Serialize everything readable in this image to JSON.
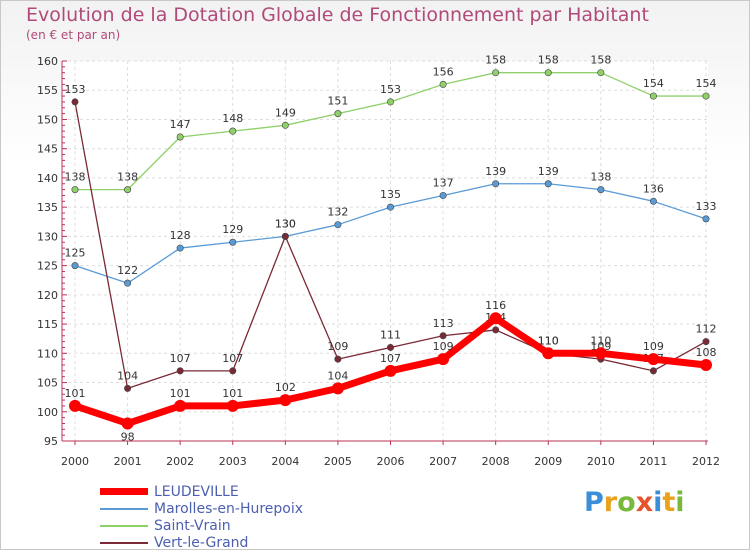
{
  "title": "Evolution de la Dotation Globale de Fonctionnement par Habitant",
  "subtitle": "(en € et par an)",
  "logo": "Proxiti",
  "chart_data": {
    "type": "line",
    "title": "Evolution de la Dotation Globale de Fonctionnement par Habitant",
    "subtitle": "(en € et par an)",
    "x": [
      "2000",
      "2001",
      "2002",
      "2003",
      "2004",
      "2005",
      "2006",
      "2007",
      "2008",
      "2009",
      "2010",
      "2011",
      "2012"
    ],
    "ylim": [
      95,
      160
    ],
    "yticks": [
      95,
      100,
      105,
      110,
      115,
      120,
      125,
      130,
      135,
      140,
      145,
      150,
      155,
      160
    ],
    "legend_position": "bottom-left",
    "series": [
      {
        "name": "LEUDEVILLE",
        "color": "#ff0000",
        "values": [
          101,
          98,
          101,
          101,
          102,
          104,
          107,
          109,
          116,
          110,
          110,
          109,
          108
        ]
      },
      {
        "name": "Marolles-en-Hurepoix",
        "color": "#5b9bd5",
        "values": [
          125,
          122,
          128,
          129,
          130,
          132,
          135,
          137,
          139,
          139,
          138,
          136,
          133
        ]
      },
      {
        "name": "Saint-Vrain",
        "color": "#8fd06a",
        "values": [
          138,
          138,
          147,
          148,
          149,
          151,
          153,
          156,
          158,
          158,
          158,
          154,
          154
        ]
      },
      {
        "name": "Vert-le-Grand",
        "color": "#7a2a36",
        "values": [
          153,
          104,
          107,
          107,
          130,
          109,
          111,
          113,
          114,
          110,
          109,
          107,
          112
        ]
      }
    ]
  }
}
